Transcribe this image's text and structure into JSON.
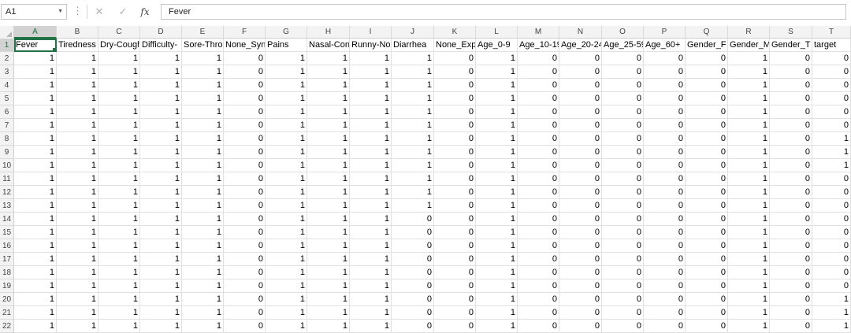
{
  "formula_bar": {
    "name_box": "A1",
    "cancel_icon": "✕",
    "enter_icon": "✓",
    "fx_label": "fx",
    "formula": "Fever"
  },
  "columns": [
    "A",
    "B",
    "C",
    "D",
    "E",
    "F",
    "G",
    "H",
    "I",
    "J",
    "K",
    "L",
    "M",
    "N",
    "O",
    "P",
    "Q",
    "R",
    "S",
    "T"
  ],
  "headers": [
    "Fever",
    "Tiredness",
    "Dry-Cough",
    "Difficulty-",
    "Sore-Thro",
    "None_Syn",
    "Pains",
    "Nasal-Con",
    "Runny-No",
    "Diarrhea",
    "None_Exp",
    "Age_0-9",
    "Age_10-19",
    "Age_20-24",
    "Age_25-59",
    "Age_60+",
    "Gender_F",
    "Gender_M",
    "Gender_T",
    "target"
  ],
  "rows": [
    {
      "n": "2",
      "v": [
        1,
        1,
        1,
        1,
        1,
        0,
        1,
        1,
        1,
        1,
        0,
        1,
        0,
        0,
        0,
        0,
        0,
        1,
        0,
        0
      ]
    },
    {
      "n": "3",
      "v": [
        1,
        1,
        1,
        1,
        1,
        0,
        1,
        1,
        1,
        1,
        0,
        1,
        0,
        0,
        0,
        0,
        0,
        1,
        0,
        0
      ]
    },
    {
      "n": "4",
      "v": [
        1,
        1,
        1,
        1,
        1,
        0,
        1,
        1,
        1,
        1,
        0,
        1,
        0,
        0,
        0,
        0,
        0,
        1,
        0,
        0
      ]
    },
    {
      "n": "5",
      "v": [
        1,
        1,
        1,
        1,
        1,
        0,
        1,
        1,
        1,
        1,
        0,
        1,
        0,
        0,
        0,
        0,
        0,
        1,
        0,
        0
      ]
    },
    {
      "n": "6",
      "v": [
        1,
        1,
        1,
        1,
        1,
        0,
        1,
        1,
        1,
        1,
        0,
        1,
        0,
        0,
        0,
        0,
        0,
        1,
        0,
        0
      ]
    },
    {
      "n": "7",
      "v": [
        1,
        1,
        1,
        1,
        1,
        0,
        1,
        1,
        1,
        1,
        0,
        1,
        0,
        0,
        0,
        0,
        0,
        1,
        0,
        0
      ]
    },
    {
      "n": "8",
      "v": [
        1,
        1,
        1,
        1,
        1,
        0,
        1,
        1,
        1,
        1,
        0,
        1,
        0,
        0,
        0,
        0,
        0,
        1,
        0,
        1
      ]
    },
    {
      "n": "9",
      "v": [
        1,
        1,
        1,
        1,
        1,
        0,
        1,
        1,
        1,
        1,
        0,
        1,
        0,
        0,
        0,
        0,
        0,
        1,
        0,
        1
      ]
    },
    {
      "n": "10",
      "v": [
        1,
        1,
        1,
        1,
        1,
        0,
        1,
        1,
        1,
        1,
        0,
        1,
        0,
        0,
        0,
        0,
        0,
        1,
        0,
        1
      ]
    },
    {
      "n": "11",
      "v": [
        1,
        1,
        1,
        1,
        1,
        0,
        1,
        1,
        1,
        1,
        0,
        1,
        0,
        0,
        0,
        0,
        0,
        1,
        0,
        0
      ]
    },
    {
      "n": "12",
      "v": [
        1,
        1,
        1,
        1,
        1,
        0,
        1,
        1,
        1,
        1,
        0,
        1,
        0,
        0,
        0,
        0,
        0,
        1,
        0,
        0
      ]
    },
    {
      "n": "13",
      "v": [
        1,
        1,
        1,
        1,
        1,
        0,
        1,
        1,
        1,
        1,
        0,
        1,
        0,
        0,
        0,
        0,
        0,
        1,
        0,
        0
      ]
    },
    {
      "n": "14",
      "v": [
        1,
        1,
        1,
        1,
        1,
        0,
        1,
        1,
        1,
        0,
        0,
        1,
        0,
        0,
        0,
        0,
        0,
        1,
        0,
        0
      ]
    },
    {
      "n": "15",
      "v": [
        1,
        1,
        1,
        1,
        1,
        0,
        1,
        1,
        1,
        0,
        0,
        1,
        0,
        0,
        0,
        0,
        0,
        1,
        0,
        0
      ]
    },
    {
      "n": "16",
      "v": [
        1,
        1,
        1,
        1,
        1,
        0,
        1,
        1,
        1,
        0,
        0,
        1,
        0,
        0,
        0,
        0,
        0,
        1,
        0,
        0
      ]
    },
    {
      "n": "17",
      "v": [
        1,
        1,
        1,
        1,
        1,
        0,
        1,
        1,
        1,
        0,
        0,
        1,
        0,
        0,
        0,
        0,
        0,
        1,
        0,
        0
      ]
    },
    {
      "n": "18",
      "v": [
        1,
        1,
        1,
        1,
        1,
        0,
        1,
        1,
        1,
        0,
        0,
        1,
        0,
        0,
        0,
        0,
        0,
        1,
        0,
        0
      ]
    },
    {
      "n": "19",
      "v": [
        1,
        1,
        1,
        1,
        1,
        0,
        1,
        1,
        1,
        0,
        0,
        1,
        0,
        0,
        0,
        0,
        0,
        1,
        0,
        0
      ]
    },
    {
      "n": "20",
      "v": [
        1,
        1,
        1,
        1,
        1,
        0,
        1,
        1,
        1,
        0,
        0,
        1,
        0,
        0,
        0,
        0,
        0,
        1,
        0,
        1
      ]
    },
    {
      "n": "21",
      "v": [
        1,
        1,
        1,
        1,
        1,
        0,
        1,
        1,
        1,
        0,
        0,
        1,
        0,
        0,
        0,
        0,
        0,
        1,
        0,
        1
      ]
    },
    {
      "n": "22",
      "v": [
        1,
        1,
        1,
        1,
        1,
        0,
        1,
        1,
        1,
        0,
        0,
        1,
        0,
        0,
        0,
        0,
        0,
        1,
        0,
        1
      ]
    }
  ],
  "colors": {
    "accent": "#217346",
    "header_bg": "#f3f3f3",
    "gridline": "#e1e1e1"
  }
}
